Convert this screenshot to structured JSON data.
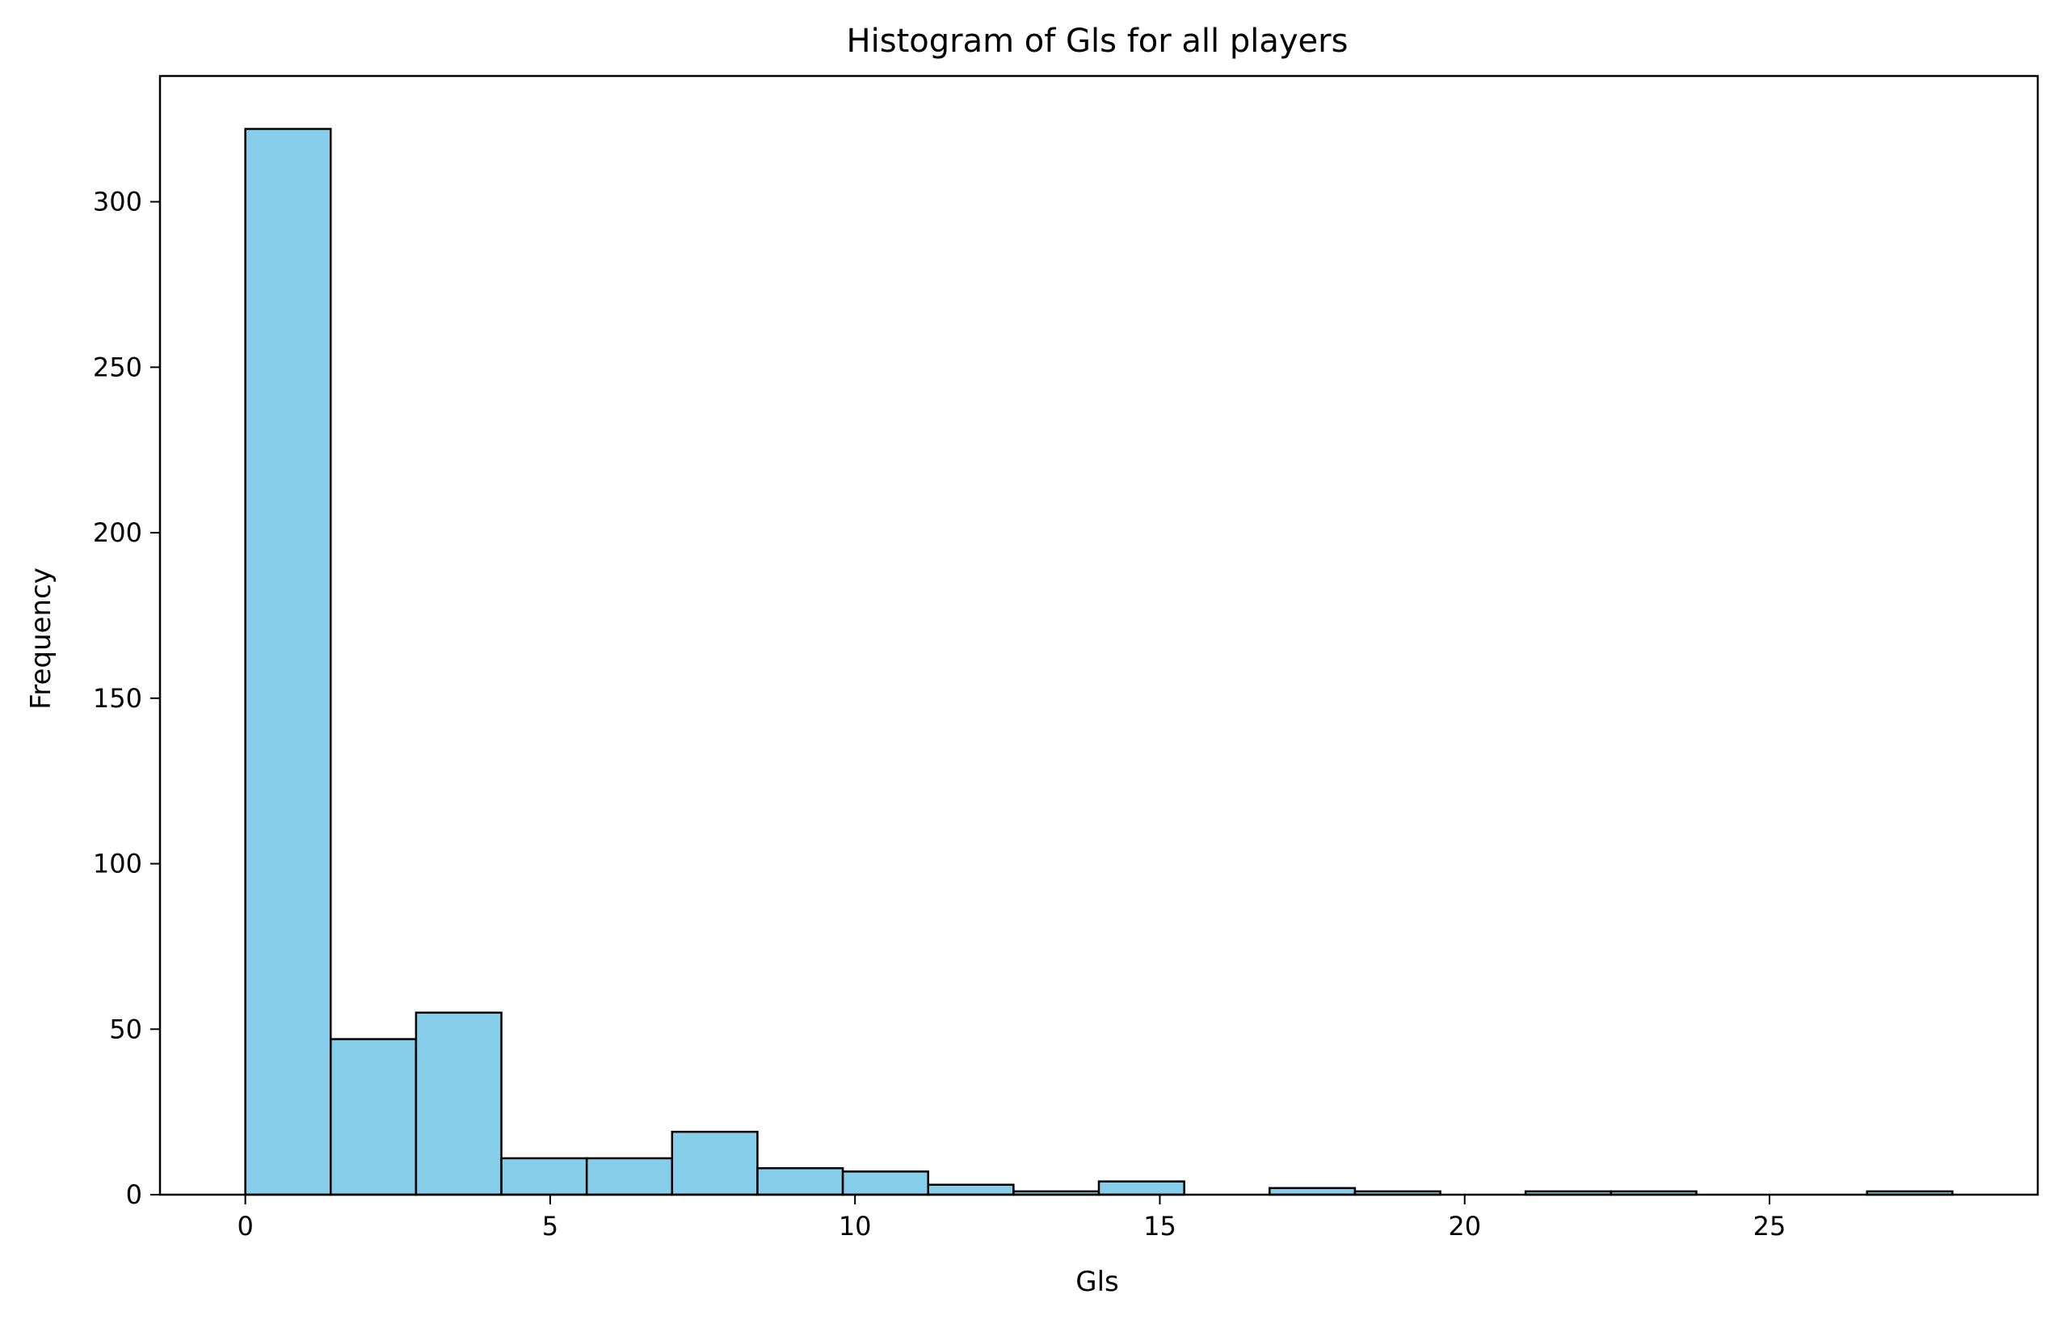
{
  "chart_data": {
    "type": "bar",
    "title": "Histogram of Gls for all players",
    "xlabel": "Gls",
    "ylabel": "Frequency",
    "bin_edges": [
      0,
      1.4,
      2.8,
      4.2,
      5.6,
      7.0,
      8.4,
      9.8,
      11.2,
      12.6,
      14.0,
      15.4,
      16.8,
      18.2,
      19.6,
      21.0,
      22.4,
      23.8,
      25.2,
      26.6,
      28.0
    ],
    "values": [
      322,
      47,
      55,
      11,
      11,
      19,
      8,
      7,
      3,
      1,
      4,
      0,
      2,
      1,
      0,
      1,
      1,
      0,
      0,
      1
    ],
    "xlim": [
      -1.4,
      29.4
    ],
    "ylim": [
      0,
      338
    ],
    "xticks": [
      0,
      5,
      10,
      15,
      20,
      25
    ],
    "xtick_labels": [
      "0",
      "5",
      "10",
      "15",
      "20",
      "25"
    ],
    "yticks": [
      0,
      50,
      100,
      150,
      200,
      250,
      300
    ],
    "ytick_labels": [
      "0",
      "50",
      "100",
      "150",
      "200",
      "250",
      "300"
    ],
    "bar_color": "#87CEEB",
    "edge_color": "#000000",
    "grid": false,
    "legend": false
  }
}
